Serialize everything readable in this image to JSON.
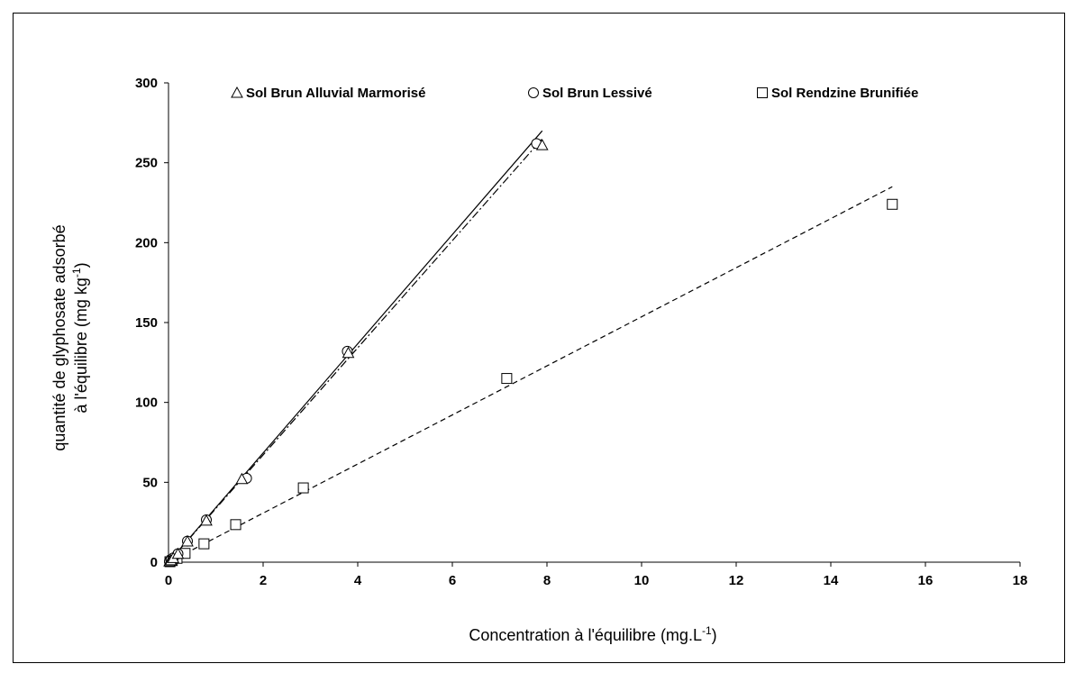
{
  "chart_data": {
    "type": "scatter",
    "xlabel": "Concentration à l'équilibre (mg.L",
    "xlabel_sup": "-1",
    "xlabel_end": ")",
    "ylabel_line1": "quantité de glyphosate adsorbé",
    "ylabel_line2": "à l'équilibre (mg kg",
    "ylabel_sup": "-1",
    "ylabel_end": ")",
    "xlim": [
      0,
      18
    ],
    "ylim": [
      0,
      300
    ],
    "x_ticks": [
      "0",
      "2",
      "4",
      "6",
      "8",
      "10",
      "12",
      "14",
      "16",
      "18"
    ],
    "y_ticks": [
      "0",
      "50",
      "100",
      "150",
      "200",
      "250",
      "300"
    ],
    "legend_position": "top",
    "series": [
      {
        "name": "Sol Brun Alluvial Marmorisé",
        "marker": "triangle",
        "line_style": "solid",
        "points": [
          [
            0.02,
            0.5
          ],
          [
            0.05,
            1.2
          ],
          [
            0.1,
            2.6
          ],
          [
            0.2,
            5.2
          ],
          [
            0.4,
            13
          ],
          [
            0.8,
            26
          ],
          [
            1.55,
            52
          ],
          [
            3.8,
            131
          ],
          [
            7.9,
            261
          ]
        ],
        "fit": [
          [
            0,
            0
          ],
          [
            7.9,
            270
          ]
        ]
      },
      {
        "name": "Sol Brun Lessivé",
        "marker": "circle",
        "line_style": "dash-dot",
        "points": [
          [
            0.02,
            0.5
          ],
          [
            0.05,
            1.3
          ],
          [
            0.1,
            2.7
          ],
          [
            0.2,
            5.3
          ],
          [
            0.4,
            13.2
          ],
          [
            0.8,
            26.5
          ],
          [
            1.65,
            52.5
          ],
          [
            3.78,
            132
          ],
          [
            7.78,
            262
          ]
        ],
        "fit": [
          [
            0,
            0
          ],
          [
            7.9,
            265
          ]
        ]
      },
      {
        "name": "Sol Rendzine Brunifiée",
        "marker": "square",
        "line_style": "dashed",
        "points": [
          [
            0.03,
            0.3
          ],
          [
            0.08,
            1
          ],
          [
            0.18,
            2.4
          ],
          [
            0.35,
            5.5
          ],
          [
            0.75,
            11.5
          ],
          [
            1.42,
            23.5
          ],
          [
            2.85,
            46.5
          ],
          [
            7.15,
            115
          ],
          [
            15.3,
            224
          ]
        ],
        "fit": [
          [
            0,
            0
          ],
          [
            15.3,
            235
          ]
        ]
      }
    ]
  }
}
